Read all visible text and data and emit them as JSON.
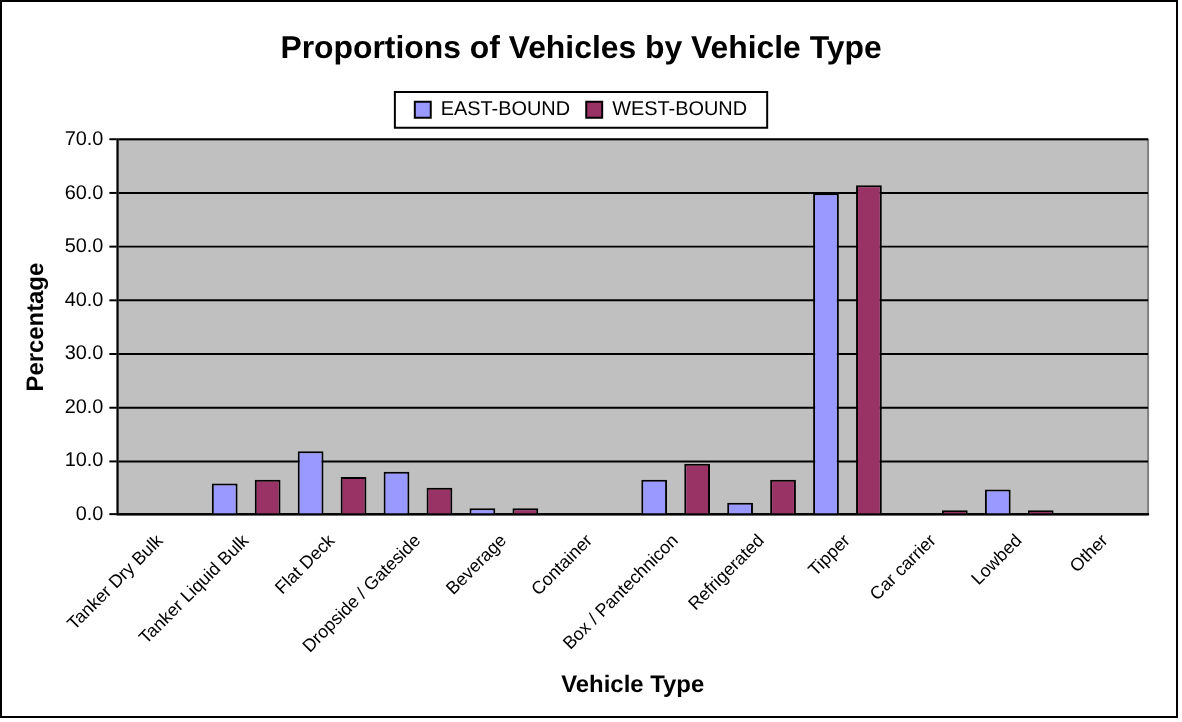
{
  "chart_data": {
    "type": "bar",
    "title": "Proportions of Vehicles by Vehicle Type",
    "xlabel": "Vehicle Type",
    "ylabel": "Percentage",
    "categories": [
      "Tanker Dry Bulk",
      "Tanker Liquid Bulk",
      "Flat Deck",
      "Dropside / Gateside",
      "Beverage",
      "Container",
      "Box / Pantechnicon",
      "Refrigerated",
      "Tipper",
      "Car carrier",
      "Lowbed",
      "Other"
    ],
    "series": [
      {
        "name": "EAST-BOUND",
        "color": "#9999ff",
        "values": [
          0,
          5.8,
          11.8,
          8.0,
          1.2,
          0,
          6.5,
          2.2,
          60.0,
          0,
          4.7,
          0
        ]
      },
      {
        "name": "WEST-BOUND",
        "color": "#993366",
        "values": [
          0,
          6.5,
          7.0,
          5.0,
          1.2,
          0,
          9.5,
          6.5,
          61.5,
          0.8,
          0.8,
          0
        ]
      }
    ],
    "ylim": [
      0,
      70
    ],
    "yticks": [
      {
        "value": 0,
        "label": "0.0"
      },
      {
        "value": 10,
        "label": "10.0"
      },
      {
        "value": 20,
        "label": "20.0"
      },
      {
        "value": 30,
        "label": "30.0"
      },
      {
        "value": 40,
        "label": "40.0"
      },
      {
        "value": 50,
        "label": "50.0"
      },
      {
        "value": 60,
        "label": "60.0"
      },
      {
        "value": 70,
        "label": "70.0"
      }
    ],
    "grid": "y",
    "legend": "top"
  }
}
